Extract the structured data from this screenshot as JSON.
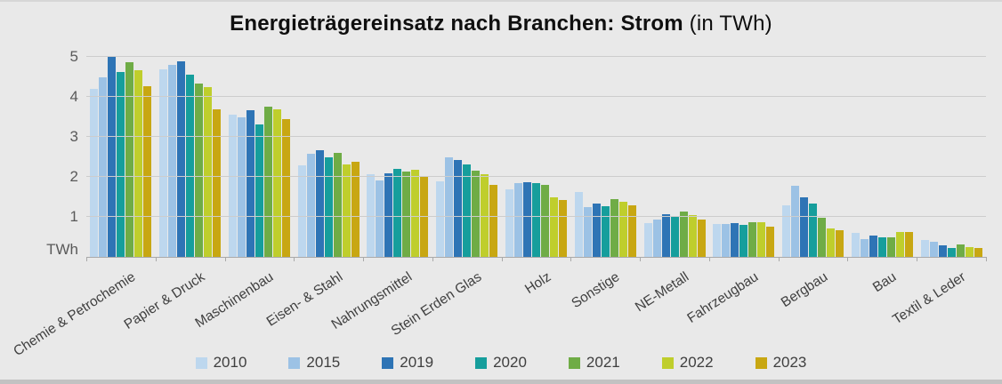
{
  "title": {
    "main": "Energieträgereinsatz nach Branchen: Strom",
    "suffix": " (in TWh)"
  },
  "y_axis": {
    "unit_label": "TWh",
    "ticks": [
      5,
      4,
      3,
      2,
      1
    ]
  },
  "colors": {
    "background": "#E9E9E9",
    "bottom_strip": "#C2C2C2",
    "gridline": "#CDCDCD",
    "axis_line": "#A9A9A9",
    "tick_text": "#595959",
    "category_text": "#3F3F3F",
    "title_text": "#0F0F0F"
  },
  "chart_data": {
    "type": "bar",
    "title": "Energieträgereinsatz nach Branchen: Strom (in TWh)",
    "xlabel": "",
    "ylabel": "TWh",
    "ylim": [
      0,
      5
    ],
    "grid": true,
    "legend_position": "bottom",
    "categories": [
      "Chemie & Petrochemie",
      "Papier & Druck",
      "Maschinenbau",
      "Eisen- & Stahl",
      "Nahrungsmittel",
      "Stein Erden Glas",
      "Holz",
      "Sonstige",
      "NE-Metall",
      "Fahrzeugbau",
      "Bergbau",
      "Bau",
      "Textil & Leder"
    ],
    "series": [
      {
        "name": "2010",
        "color": "#BDD7EE",
        "values": [
          4.2,
          4.7,
          3.55,
          2.3,
          2.07,
          1.88,
          1.7,
          1.62,
          0.84,
          0.82,
          1.3,
          0.6,
          0.42
        ]
      },
      {
        "name": "2015",
        "color": "#9CC2E5",
        "values": [
          4.5,
          4.8,
          3.48,
          2.58,
          1.92,
          2.5,
          1.84,
          1.25,
          0.94,
          0.82,
          1.77,
          0.45,
          0.38
        ]
      },
      {
        "name": "2019",
        "color": "#2E74B5",
        "values": [
          5.0,
          4.9,
          3.67,
          2.67,
          2.1,
          2.42,
          1.87,
          1.33,
          1.06,
          0.85,
          1.49,
          0.53,
          0.3
        ]
      },
      {
        "name": "2020",
        "color": "#169E9C",
        "values": [
          4.62,
          4.55,
          3.31,
          2.5,
          2.2,
          2.32,
          1.84,
          1.26,
          0.99,
          0.79,
          1.33,
          0.5,
          0.23
        ]
      },
      {
        "name": "2021",
        "color": "#6FAC46",
        "values": [
          4.87,
          4.33,
          3.75,
          2.6,
          2.13,
          2.16,
          1.79,
          1.44,
          1.13,
          0.87,
          0.98,
          0.48,
          0.32
        ]
      },
      {
        "name": "2022",
        "color": "#BFCE2C",
        "values": [
          4.66,
          4.25,
          3.7,
          2.31,
          2.17,
          2.06,
          1.49,
          1.37,
          1.04,
          0.86,
          0.72,
          0.62,
          0.25
        ]
      },
      {
        "name": "2023",
        "color": "#C8A712",
        "values": [
          4.26,
          3.7,
          3.44,
          2.37,
          2.0,
          1.8,
          1.43,
          1.28,
          0.93,
          0.76,
          0.67,
          0.62,
          0.23
        ]
      }
    ]
  }
}
